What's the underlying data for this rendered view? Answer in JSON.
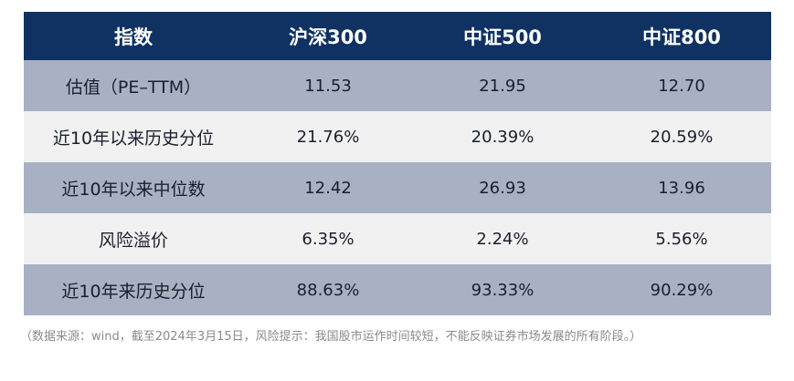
{
  "table": {
    "headers": [
      "指数",
      "沪深300",
      "中证500",
      "中证800"
    ],
    "rows": [
      {
        "label": "估值（PE–TTM）",
        "values": [
          "11.53",
          "21.95",
          "12.70"
        ]
      },
      {
        "label": "近10年以来历史分位",
        "values": [
          "21.76%",
          "20.39%",
          "20.59%"
        ]
      },
      {
        "label": "近10年以来中位数",
        "values": [
          "12.42",
          "26.93",
          "13.96"
        ]
      },
      {
        "label": "风险溢价",
        "values": [
          "6.35%",
          "2.24%",
          "5.56%"
        ]
      },
      {
        "label": "近10年来历史分位",
        "values": [
          "88.63%",
          "93.33%",
          "90.29%"
        ]
      }
    ]
  },
  "footnote": "（数据来源：wind，截至2024年3月15日，风险提示：我国股市运作时间较短，不能反映证券市场发展的所有阶段。）",
  "colors": {
    "header_bg": "#0f3262",
    "row_dark": "#a7b1c3",
    "row_light": "#f1f1f1",
    "footnote_text": "#8a8a8a"
  }
}
